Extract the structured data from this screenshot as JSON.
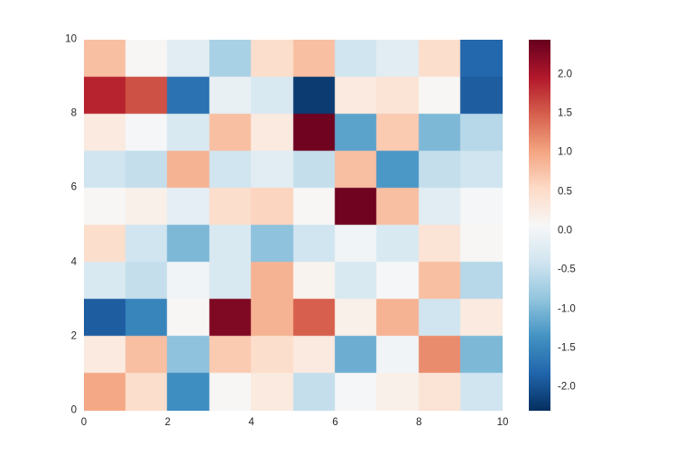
{
  "figure": {
    "background": "#ffffff",
    "tick_color": "#262626"
  },
  "chart_data": {
    "type": "heatmap",
    "title": "",
    "xlabel": "",
    "ylabel": "",
    "x_range": [
      0,
      10
    ],
    "y_range": [
      0,
      10
    ],
    "x_tick_labels": [
      "0",
      "2",
      "4",
      "6",
      "8",
      "10"
    ],
    "x_tick_values": [
      0,
      2,
      4,
      6,
      8,
      10
    ],
    "y_tick_labels": [
      "0",
      "2",
      "4",
      "6",
      "8",
      "10"
    ],
    "y_tick_values": [
      0,
      2,
      4,
      6,
      8,
      10
    ],
    "colormap": "RdBu_r",
    "colormap_anchors": [
      "#053061",
      "#2166ac",
      "#4393c3",
      "#92c5de",
      "#d1e5f0",
      "#f7f7f7",
      "#fddbc7",
      "#f4a582",
      "#d6604d",
      "#b2182b",
      "#67001f"
    ],
    "vmin": -2.3,
    "vmax": 2.45,
    "colorbar_tick_labels": [
      "2.0",
      "1.5",
      "1.0",
      "0.5",
      "0.0",
      "-0.5",
      "-1.0",
      "-1.5",
      "-2.0"
    ],
    "colorbar_tick_values": [
      2.0,
      1.5,
      1.0,
      0.5,
      0.0,
      -0.5,
      -1.0,
      -1.5,
      -2.0
    ],
    "grid": false,
    "values_rows_top_to_bottom": [
      [
        0.8,
        0.1,
        -0.2,
        -0.7,
        0.5,
        0.8,
        -0.4,
        -0.2,
        0.5,
        -1.8
      ],
      [
        1.9,
        1.6,
        -1.7,
        -0.1,
        -0.3,
        -2.2,
        0.3,
        0.4,
        0.1,
        -1.9
      ],
      [
        0.3,
        0.05,
        -0.3,
        0.8,
        0.3,
        2.4,
        -1.2,
        0.7,
        -1.0,
        -0.6
      ],
      [
        -0.4,
        -0.5,
        0.9,
        -0.4,
        -0.2,
        -0.5,
        0.8,
        -1.3,
        -0.5,
        -0.4
      ],
      [
        0.1,
        0.2,
        -0.15,
        0.5,
        0.6,
        0.1,
        2.4,
        0.8,
        -0.2,
        0.05
      ],
      [
        0.5,
        -0.4,
        -1.0,
        -0.3,
        -0.9,
        -0.4,
        0.0,
        -0.3,
        0.4,
        0.1
      ],
      [
        -0.3,
        -0.5,
        0.0,
        -0.3,
        0.9,
        0.15,
        -0.3,
        0.05,
        0.8,
        -0.6
      ],
      [
        -1.9,
        -1.5,
        0.1,
        2.3,
        0.9,
        1.5,
        0.2,
        0.9,
        -0.4,
        0.3
      ],
      [
        0.3,
        0.8,
        -0.9,
        0.7,
        0.5,
        0.3,
        -1.1,
        0.0,
        1.2,
        -1.0
      ],
      [
        1.0,
        0.5,
        -1.4,
        0.1,
        0.3,
        -0.5,
        0.05,
        0.2,
        0.4,
        -0.4
      ]
    ]
  }
}
